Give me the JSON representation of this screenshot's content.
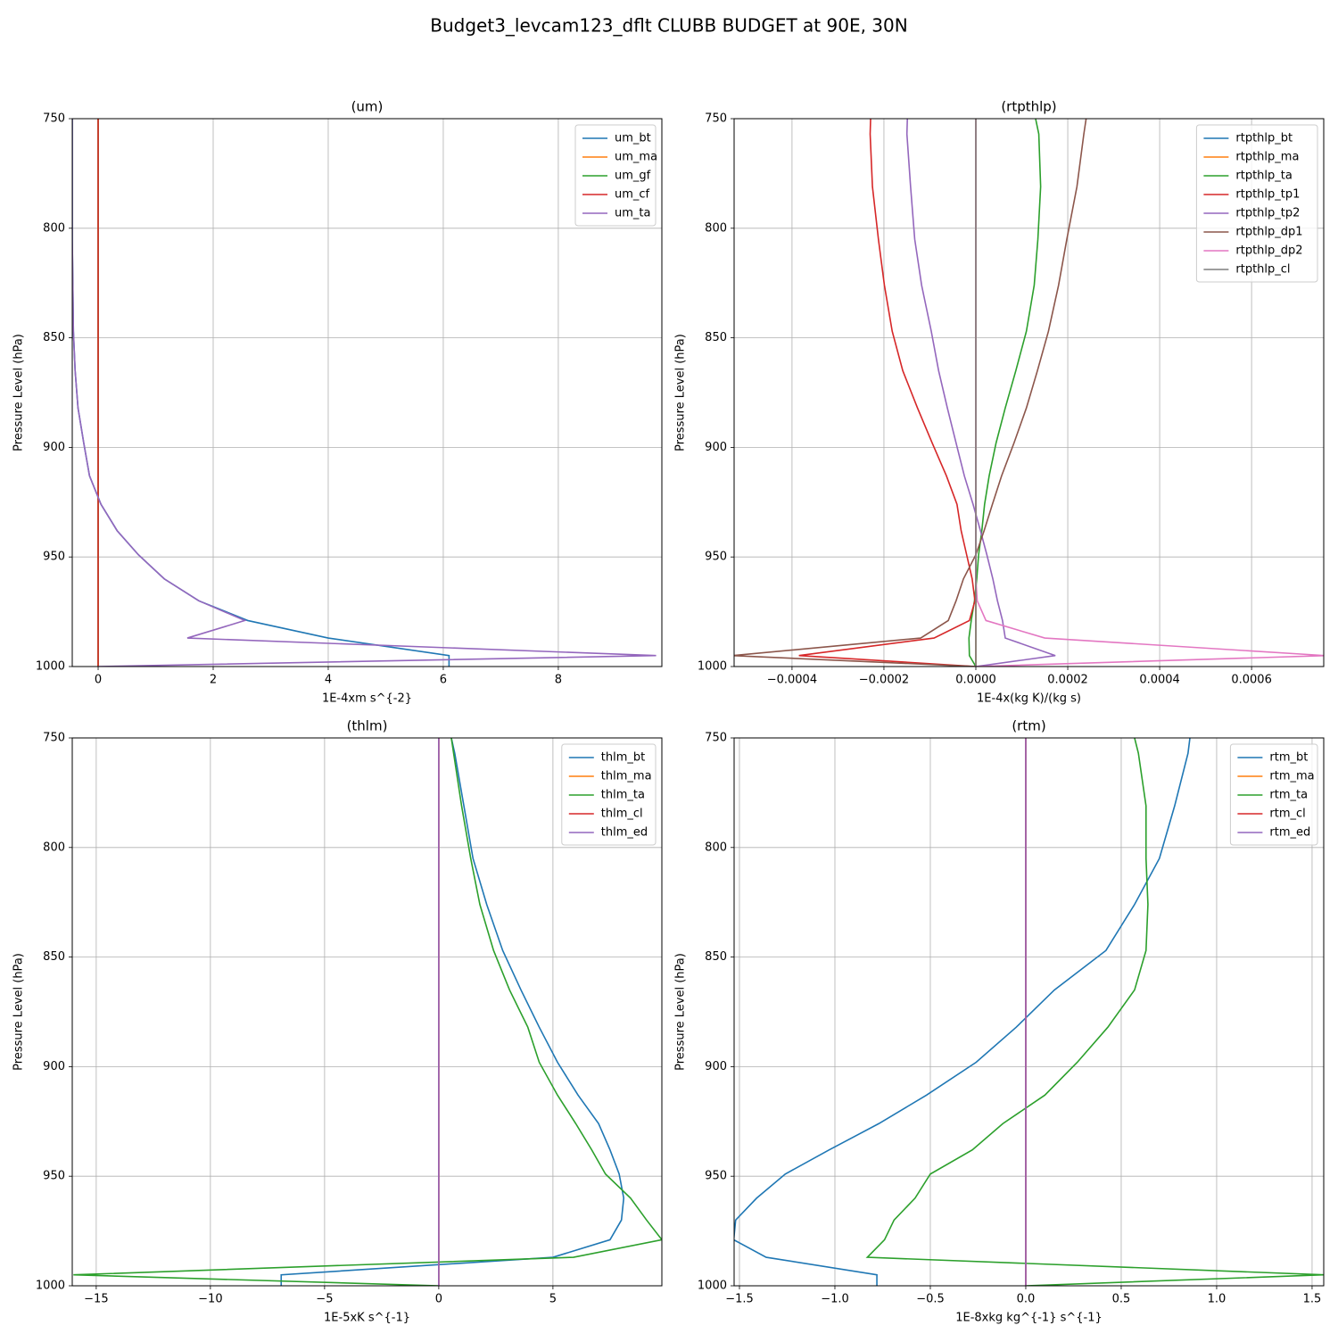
{
  "title": "Budget3_levcam123_dflt CLUBB BUDGET at 90E, 30N",
  "chart_data": [
    {
      "type": "line",
      "title": "(um)",
      "xlabel": "1E-4xm s^{-2}",
      "ylabel": "Pressure Level (hPa)",
      "y": [
        750,
        757,
        781,
        805,
        826,
        847,
        865,
        882,
        898,
        913,
        926,
        938,
        949,
        960,
        970,
        979,
        987,
        995,
        1000
      ],
      "xlim": [
        -0.45,
        9.8
      ],
      "xticks": [
        0,
        2,
        4,
        6,
        8
      ],
      "ylim": [
        750,
        1000
      ],
      "yticks": [
        750,
        800,
        850,
        900,
        950,
        1000
      ],
      "invert_y": true,
      "grid": true,
      "legend": "upper right",
      "series": [
        {
          "name": "um_bt",
          "color": "#1f77b4",
          "values": [
            -0.45,
            -0.45,
            -0.45,
            -0.45,
            -0.44,
            -0.43,
            -0.4,
            -0.35,
            -0.25,
            -0.15,
            0.05,
            0.33,
            0.7,
            1.15,
            1.75,
            2.6,
            4.0,
            6.1,
            6.1
          ]
        },
        {
          "name": "um_ma",
          "color": "#ff7f0e",
          "values": [
            0,
            0,
            0,
            0,
            0,
            0,
            0,
            0,
            0,
            0,
            0,
            0,
            0,
            0,
            0,
            0,
            0,
            0,
            0
          ]
        },
        {
          "name": "um_gf",
          "color": "#2ca02c",
          "values": [
            0,
            0,
            0,
            0,
            0,
            0,
            0,
            0,
            0,
            0,
            0,
            0,
            0,
            0,
            0,
            0,
            0,
            0,
            0
          ]
        },
        {
          "name": "um_cf",
          "color": "#d62728",
          "values": [
            0,
            0,
            0,
            0,
            0,
            0,
            0,
            0,
            0,
            0,
            0,
            0,
            0,
            0,
            0,
            0,
            0,
            0,
            0
          ]
        },
        {
          "name": "um_ta",
          "color": "#9467bd",
          "values": [
            -0.45,
            -0.45,
            -0.45,
            -0.45,
            -0.44,
            -0.43,
            -0.4,
            -0.35,
            -0.25,
            -0.15,
            0.05,
            0.33,
            0.7,
            1.15,
            1.75,
            2.55,
            1.55,
            9.7,
            0
          ]
        }
      ]
    },
    {
      "type": "line",
      "title": "(rtpthlp)",
      "xlabel": "1E-4x(kg K)/(kg s)",
      "ylabel": "Pressure Level (hPa)",
      "y": [
        750,
        757,
        781,
        805,
        826,
        847,
        865,
        882,
        898,
        913,
        926,
        938,
        949,
        960,
        970,
        979,
        987,
        995,
        1000
      ],
      "xlim": [
        -0.000526,
        0.000757
      ],
      "xticks": [
        {
          "value": -0.0004,
          "label": "−0.0004"
        },
        {
          "value": -0.0002,
          "label": "−0.0002"
        },
        {
          "value": 0,
          "label": "0.0000"
        },
        0.0002,
        0.0004,
        0.0006
      ],
      "ylim": [
        750,
        1000
      ],
      "yticks": [
        750,
        800,
        850,
        900,
        950,
        1000
      ],
      "invert_y": true,
      "grid": true,
      "legend": "upper right",
      "series": [
        {
          "name": "rtpthlp_bt",
          "color": "#1f77b4",
          "values": [
            0,
            0,
            0,
            0,
            0,
            0,
            0,
            0,
            0,
            0,
            0,
            0,
            0,
            0,
            0,
            0,
            0,
            0,
            0
          ]
        },
        {
          "name": "rtpthlp_ma",
          "color": "#ff7f0e",
          "values": [
            0,
            0,
            0,
            0,
            0,
            0,
            0,
            0,
            0,
            0,
            0,
            0,
            0,
            0,
            0,
            0,
            0,
            0,
            0
          ]
        },
        {
          "name": "rtpthlp_ta",
          "color": "#2ca02c",
          "values": [
            0.00013,
            0.000137,
            0.000141,
            0.000135,
            0.000127,
            0.00011,
            8.7e-05,
            6.4e-05,
            4.4e-05,
            2.9e-05,
            1.9e-05,
            1.3e-05,
            6e-06,
            2e-06,
            -3e-06,
            -1e-05,
            -1.5e-05,
            -1.4e-05,
            0
          ]
        },
        {
          "name": "rtpthlp_tp1",
          "color": "#d62728",
          "values": [
            -0.000229,
            -0.00023,
            -0.000225,
            -0.000212,
            -0.000199,
            -0.000182,
            -0.000159,
            -0.000127,
            -9.5e-05,
            -6.4e-05,
            -4.1e-05,
            -3.2e-05,
            -2e-05,
            -8e-06,
            -2e-06,
            -1.4e-05,
            -9.1e-05,
            -0.000385,
            0
          ]
        },
        {
          "name": "rtpthlp_tp2",
          "color": "#9467bd",
          "values": [
            -0.000149,
            -0.00015,
            -0.000142,
            -0.000133,
            -0.000118,
            -9.7e-05,
            -8.1e-05,
            -6.2e-05,
            -4.3e-05,
            -2.5e-05,
            -6e-06,
            1e-05,
            2.4e-05,
            3.7e-05,
            4.7e-05,
            5.8e-05,
            6.4e-05,
            0.000173,
            0
          ]
        },
        {
          "name": "rtpthlp_dp1",
          "color": "#8c564b",
          "values": [
            0.00024,
            0.000235,
            0.00022,
            0.000198,
            0.00018,
            0.000158,
            0.000134,
            0.00011,
            8.3e-05,
            5.6e-05,
            3.6e-05,
            1.8e-05,
            0,
            -2.7e-05,
            -4.3e-05,
            -6e-05,
            -0.00012,
            -0.00053,
            0
          ]
        },
        {
          "name": "rtpthlp_dp2",
          "color": "#e377c2",
          "values": [
            0,
            0,
            0,
            0,
            0,
            0,
            0,
            0,
            0,
            0,
            0,
            0,
            0,
            0,
            3e-06,
            2.2e-05,
            0.00015,
            0.00076,
            0
          ]
        },
        {
          "name": "rtpthlp_cl",
          "color": "#7f7f7f",
          "values": [
            0,
            0,
            0,
            0,
            0,
            0,
            0,
            0,
            0,
            0,
            0,
            0,
            0,
            0,
            0,
            0,
            0,
            0,
            0
          ]
        }
      ]
    },
    {
      "type": "line",
      "title": "(thlm)",
      "xlabel": "1E-5xK s^{-1}",
      "ylabel": "Pressure Level (hPa)",
      "y": [
        750,
        757,
        781,
        805,
        826,
        847,
        865,
        882,
        898,
        913,
        926,
        938,
        949,
        960,
        970,
        979,
        987,
        995,
        1000
      ],
      "xlim": [
        -16.05,
        9.77
      ],
      "xticks": [
        {
          "value": -15,
          "label": "−15"
        },
        {
          "value": -10,
          "label": "−10"
        },
        {
          "value": -5,
          "label": "−5"
        },
        0,
        5
      ],
      "ylim": [
        750,
        1000
      ],
      "yticks": [
        750,
        800,
        850,
        900,
        950,
        1000
      ],
      "invert_y": true,
      "grid": true,
      "legend": "upper right",
      "series": [
        {
          "name": "thlm_bt",
          "color": "#1f77b4",
          "values": [
            0.55,
            0.7,
            1.1,
            1.5,
            2.1,
            2.8,
            3.6,
            4.4,
            5.2,
            6.1,
            7.0,
            7.5,
            7.9,
            8.1,
            8.0,
            7.5,
            5.0,
            -6.9,
            -6.9
          ]
        },
        {
          "name": "thlm_ma",
          "color": "#ff7f0e",
          "values": [
            0,
            0,
            0,
            0,
            0,
            0,
            0,
            0,
            0,
            0,
            0,
            0,
            0,
            0,
            0,
            0,
            0,
            0,
            0
          ]
        },
        {
          "name": "thlm_ta",
          "color": "#2ca02c",
          "values": [
            0.55,
            0.65,
            1.0,
            1.4,
            1.8,
            2.4,
            3.1,
            3.9,
            4.4,
            5.2,
            6.0,
            6.7,
            7.3,
            8.4,
            9.1,
            9.77,
            5.9,
            -16,
            0
          ]
        },
        {
          "name": "thlm_cl",
          "color": "#d62728",
          "values": [
            0,
            0,
            0,
            0,
            0,
            0,
            0,
            0,
            0,
            0,
            0,
            0,
            0,
            0,
            0,
            0,
            0,
            0,
            0
          ]
        },
        {
          "name": "thlm_ed",
          "color": "#9467bd",
          "values": [
            0,
            0,
            0,
            0,
            0,
            0,
            0,
            0,
            0,
            0,
            0,
            0,
            0,
            0,
            0,
            0,
            0,
            0,
            0
          ]
        }
      ]
    },
    {
      "type": "line",
      "title": "(rtm)",
      "xlabel": "1E-8xkg kg^{-1} s^{-1}",
      "ylabel": "Pressure Level (hPa)",
      "y": [
        750,
        757,
        781,
        805,
        826,
        847,
        865,
        882,
        898,
        913,
        926,
        938,
        949,
        960,
        970,
        979,
        987,
        995,
        1000
      ],
      "xlim": [
        -1.528,
        1.561
      ],
      "xticks": [
        {
          "value": -1.5,
          "label": "−1.5"
        },
        {
          "value": -1.0,
          "label": "−1.0"
        },
        {
          "value": -0.5,
          "label": "−0.5"
        },
        {
          "value": 0,
          "label": "0.0"
        },
        0.5,
        {
          "value": 1.0,
          "label": "1.0"
        },
        1.5
      ],
      "ylim": [
        750,
        1000
      ],
      "yticks": [
        750,
        800,
        850,
        900,
        950,
        1000
      ],
      "invert_y": true,
      "grid": true,
      "legend": "upper right",
      "series": [
        {
          "name": "rtm_bt",
          "color": "#1f77b4",
          "values": [
            0.86,
            0.85,
            0.78,
            0.7,
            0.57,
            0.42,
            0.15,
            -0.05,
            -0.26,
            -0.52,
            -0.77,
            -1.03,
            -1.26,
            -1.41,
            -1.52,
            -1.53,
            -1.36,
            -0.78,
            -0.78
          ]
        },
        {
          "name": "rtm_ma",
          "color": "#ff7f0e",
          "values": [
            0,
            0,
            0,
            0,
            0,
            0,
            0,
            0,
            0,
            0,
            0,
            0,
            0,
            0,
            0,
            0,
            0,
            0,
            0
          ]
        },
        {
          "name": "rtm_ta",
          "color": "#2ca02c",
          "values": [
            0.57,
            0.59,
            0.63,
            0.63,
            0.64,
            0.63,
            0.57,
            0.43,
            0.27,
            0.1,
            -0.12,
            -0.28,
            -0.5,
            -0.58,
            -0.69,
            -0.74,
            -0.83,
            1.56,
            0
          ]
        },
        {
          "name": "rtm_cl",
          "color": "#d62728",
          "values": [
            0,
            0,
            0,
            0,
            0,
            0,
            0,
            0,
            0,
            0,
            0,
            0,
            0,
            0,
            0,
            0,
            0,
            0,
            0
          ]
        },
        {
          "name": "rtm_ed",
          "color": "#9467bd",
          "values": [
            0,
            0,
            0,
            0,
            0,
            0,
            0,
            0,
            0,
            0,
            0,
            0,
            0,
            0,
            0,
            0,
            0,
            0,
            0
          ]
        }
      ]
    }
  ]
}
